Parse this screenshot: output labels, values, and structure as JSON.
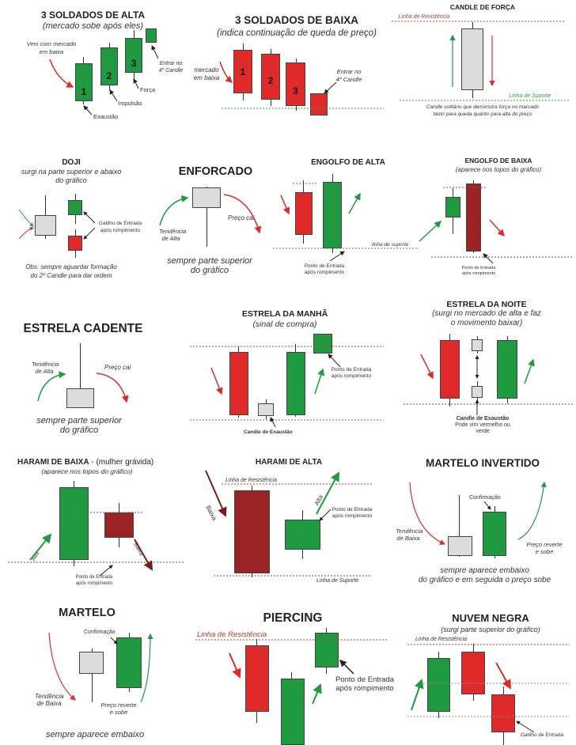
{
  "colors": {
    "green": "#1f9a40",
    "red": "#e02a2a",
    "dark_red": "#9a2323",
    "gray": "#dcdcdc",
    "resistance": "#c0392b",
    "support": "#3a9a3a"
  },
  "soldados_alta": {
    "title": "3 SOLDADOS DE ALTA",
    "subtitle": "(mercado sobe após eles)",
    "left_note": "Vem com mercado\nem baixa",
    "entry_note": "Entrar no\n4º Candle",
    "forca": "Força",
    "impulso": "Impulsão",
    "exaustao": "Exaustão",
    "n1": "1",
    "n2": "2",
    "n3": "3"
  },
  "soldados_baixa": {
    "title": "3 SOLDADOS DE BAIXA",
    "subtitle": "(indica continuação de queda de preço)",
    "left_note": "mercado\nem baixa",
    "entry_note": "Entrar no\n4º Candle",
    "n1": "1",
    "n2": "2",
    "n3": "3"
  },
  "candle_forca": {
    "title": "CANDLE DE FORÇA",
    "resistencia": "Linha de Resistência",
    "suporte": "Linha de Suporte",
    "caption": "Candle solitário que demonstra força no marcado\ntanto para queda quanto para alta do preço"
  },
  "doji": {
    "title": "DOJI",
    "subtitle": "surgi na parte superior e abaixo\ndo gráfico",
    "gatilho": "Gatilho de Entrada\napós rompimento",
    "obs": "Obs: sempre aguardar formação\ndo 2º Candle para dar ordem"
  },
  "enforcado": {
    "title": "ENFORCADO",
    "preco_cai": "Preço cai",
    "tendencia": "Tendência\nde Alta",
    "caption": "sempre parte superior\ndo gráfico"
  },
  "engolfo_alta": {
    "title": "ENGOLFO DE ALTA",
    "suporte": "linha de suporte",
    "ponto": "Ponto de Entrada\napós rompimento"
  },
  "engolfo_baixa": {
    "title": "ENGOLFO DE BAIXA",
    "subtitle": "(aparece nos topos do gráfico)",
    "ponto": "Ponto de Entrada\napós rompimento"
  },
  "estrela_cadente": {
    "title": "ESTRELA CADENTE",
    "tendencia": "Tendência\nde Alta",
    "preco_cai": "Preço cai",
    "caption": "sempre parte superior\ndo gráfico"
  },
  "estrela_manha": {
    "title": "ESTRELA DA MANHÃ",
    "subtitle": "(sinal de compra)",
    "ponto": "Ponto de Entrada\napós rompimento",
    "exaustao": "Candle de Exaustão"
  },
  "estrela_noite": {
    "title": "ESTRELA DA NOITE",
    "subtitle": "(surgi no mercado de alta e faz\no movimento baixar)",
    "exaustao": "Candle de Exaustão",
    "exaustao_sub": "Pode vim vermelho ou\nverde"
  },
  "harami_baixa": {
    "title": "HARAMI DE BAIXA",
    "title_suffix": " - (mulher grávida)",
    "subtitle": "(aparece nos topos do gráfico)",
    "alta": "Alta",
    "baixa": "Baixa",
    "ponto": "Ponto de Entrada\napós rompimento"
  },
  "harami_alta": {
    "title": "HARAMI DE ALTA",
    "resistencia": "Linha de Resistência",
    "suporte": "Linha de Suporte",
    "baixa": "Baixa",
    "alta": "Alta",
    "ponto": "Ponto de Entrada\napós rompimento"
  },
  "martelo_invertido": {
    "title": "MARTELO INVERTIDO",
    "confirmacao": "Confirmação",
    "tendencia": "Tendência\nde Baixa",
    "preco": "Preço reverte\ne sobe",
    "caption": "sempre aparece embaixo\ndo gráfico e em seguida o preço sobe"
  },
  "martelo": {
    "title": "MARTELO",
    "confirmacao": "Confirmação",
    "tendencia": "Tendência\nde Baixa",
    "preco": "Preço reverte\ne sobe",
    "caption": "sempre aparece embaixo"
  },
  "piercing": {
    "title": "PIERCING",
    "resistencia": "Linha de Resistência",
    "ponto": "Ponto de Entrada\napós rompimento"
  },
  "nuvem_negra": {
    "title": "NUVEM NEGRA",
    "subtitle": "(surgi parte superior do gráfico)",
    "resistencia": "Linha de Resistência",
    "gatilho": "Gatilho de Entrada"
  }
}
